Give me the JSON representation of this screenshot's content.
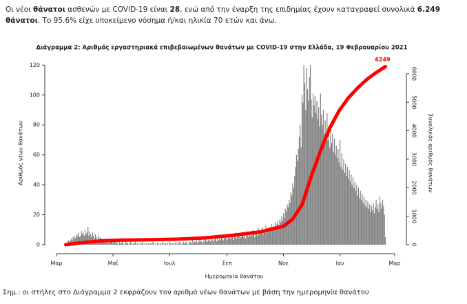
{
  "intro": [
    {
      "text": "Οι νέοι ",
      "bold": false
    },
    {
      "text": "θάνατοι",
      "bold": true
    },
    {
      "text": " ασθενών με COVID-19 είναι ",
      "bold": false
    },
    {
      "text": "28",
      "bold": true
    },
    {
      "text": ", ενώ από την έναρξη της επιδημίας έχουν καταγραφεί συνολικά ",
      "bold": false
    },
    {
      "text": "6.249 θάνατοι",
      "bold": true
    },
    {
      "text": ".  Το 95.6% είχε υποκείμενο νόσημα ή/και ηλικία 70 ετών και άνω.",
      "bold": false
    }
  ],
  "chart_data": {
    "type": "bar",
    "title": "Διάγραμμα 2: Αριθμός εργαστηριακά επιβεβαιωμένων θανάτων με COVID-19 στην Ελλάδα, 19 Φεβρουαρίου 2021",
    "xlabel": "Ημερομηνία θανάτου",
    "ylabel": "Αριθμός νέων θανάτων",
    "y2label": "Συνολικός αριθμός θανάτων",
    "xlim": [
      0,
      365
    ],
    "xticks": [
      {
        "value": 0,
        "label": "Μαρ"
      },
      {
        "value": 61,
        "label": "Μαΐ"
      },
      {
        "value": 122,
        "label": "Ιουλ"
      },
      {
        "value": 184,
        "label": "Σεπ"
      },
      {
        "value": 245,
        "label": "Νοε"
      },
      {
        "value": 306,
        "label": "Ιαν"
      },
      {
        "value": 365,
        "label": "Μαρ"
      }
    ],
    "ylim": [
      0,
      122
    ],
    "yticks": [
      0,
      20,
      40,
      60,
      80,
      100,
      120
    ],
    "y2lim": [
      0,
      6410
    ],
    "y2ticks": [
      0,
      1000,
      2000,
      3000,
      4000,
      5000,
      6000
    ],
    "series": [
      {
        "color": "#808080",
        "x": [
          10,
          11,
          12,
          13,
          14,
          15,
          16,
          17,
          18,
          19,
          20,
          21,
          22,
          23,
          24,
          25,
          26,
          27,
          28,
          29,
          30,
          31,
          32,
          33,
          34,
          35,
          36,
          37,
          38,
          39,
          40,
          41,
          42,
          43,
          44,
          45,
          46,
          47,
          48,
          49,
          50,
          51,
          52,
          53,
          54,
          55,
          56,
          57,
          58,
          59,
          60,
          61,
          62,
          63,
          64,
          65,
          66,
          67,
          68,
          69,
          70,
          71,
          72,
          73,
          74,
          75,
          76,
          77,
          78,
          79,
          80,
          81,
          82,
          83,
          84,
          85,
          86,
          87,
          88,
          89,
          90,
          91,
          92,
          93,
          94,
          95,
          96,
          97,
          98,
          99,
          100,
          101,
          102,
          103,
          104,
          105,
          106,
          107,
          108,
          109,
          110,
          111,
          112,
          113,
          114,
          115,
          116,
          117,
          118,
          119,
          120,
          121,
          122,
          123,
          124,
          125,
          126,
          127,
          128,
          129,
          130,
          131,
          132,
          133,
          134,
          135,
          136,
          137,
          138,
          139,
          140,
          141,
          142,
          143,
          144,
          145,
          146,
          147,
          148,
          149,
          150,
          151,
          152,
          153,
          154,
          155,
          156,
          157,
          158,
          159,
          160,
          161,
          162,
          163,
          164,
          165,
          166,
          167,
          168,
          169,
          170,
          171,
          172,
          173,
          174,
          175,
          176,
          177,
          178,
          179,
          180,
          181,
          182,
          183,
          184,
          185,
          186,
          187,
          188,
          189,
          190,
          191,
          192,
          193,
          194,
          195,
          196,
          197,
          198,
          199,
          200,
          201,
          202,
          203,
          204,
          205,
          206,
          207,
          208,
          209,
          210,
          211,
          212,
          213,
          214,
          215,
          216,
          217,
          218,
          219,
          220,
          221,
          222,
          223,
          224,
          225,
          226,
          227,
          228,
          229,
          230,
          231,
          232,
          233,
          234,
          235,
          236,
          237,
          238,
          239,
          240,
          241,
          242,
          243,
          244,
          245,
          246,
          247,
          248,
          249,
          250,
          251,
          252,
          253,
          254,
          255,
          256,
          257,
          258,
          259,
          260,
          261,
          262,
          263,
          264,
          265,
          266,
          267,
          268,
          269,
          270,
          271,
          272,
          273,
          274,
          275,
          276,
          277,
          278,
          279,
          280,
          281,
          282,
          283,
          284,
          285,
          286,
          287,
          288,
          289,
          290,
          291,
          292,
          293,
          294,
          295,
          296,
          297,
          298,
          299,
          300,
          301,
          302,
          303,
          304,
          305,
          306,
          307,
          308,
          309,
          310,
          311,
          312,
          313,
          314,
          315,
          316,
          317,
          318,
          319,
          320,
          321,
          322,
          323,
          324,
          325,
          326,
          327,
          328,
          329,
          330,
          331,
          332,
          333,
          334,
          335,
          336,
          337,
          338,
          339,
          340,
          341,
          342,
          343,
          344,
          345,
          346,
          347,
          348,
          349,
          350,
          351,
          352,
          353,
          354,
          355
        ],
        "values": [
          1,
          1,
          2,
          3,
          2,
          3,
          4,
          3,
          5,
          6,
          4,
          5,
          7,
          6,
          8,
          5,
          6,
          9,
          7,
          8,
          6,
          10,
          7,
          8,
          12,
          6,
          9,
          7,
          5,
          8,
          6,
          4,
          7,
          5,
          3,
          6,
          4,
          5,
          3,
          4,
          3,
          2,
          4,
          3,
          2,
          3,
          1,
          2,
          3,
          2,
          2,
          1,
          3,
          2,
          1,
          2,
          1,
          0,
          2,
          1,
          1,
          2,
          1,
          0,
          1,
          2,
          1,
          1,
          0,
          1,
          2,
          1,
          0,
          1,
          1,
          2,
          0,
          1,
          1,
          0,
          1,
          0,
          1,
          2,
          0,
          1,
          0,
          1,
          0,
          1,
          0,
          1,
          1,
          0,
          2,
          1,
          0,
          1,
          0,
          1,
          1,
          0,
          1,
          0,
          1,
          2,
          0,
          1,
          1,
          0,
          1,
          0,
          2,
          1,
          0,
          1,
          1,
          0,
          1,
          2,
          0,
          1,
          1,
          2,
          1,
          0,
          1,
          2,
          1,
          1,
          2,
          1,
          0,
          2,
          1,
          2,
          1,
          3,
          1,
          2,
          2,
          3,
          1,
          2,
          4,
          2,
          3,
          2,
          1,
          3,
          2,
          4,
          3,
          2,
          3,
          5,
          2,
          3,
          4,
          2,
          3,
          5,
          4,
          2,
          6,
          3,
          4,
          3,
          5,
          4,
          3,
          4,
          6,
          5,
          3,
          4,
          7,
          5,
          4,
          6,
          5,
          3,
          6,
          8,
          4,
          5,
          7,
          6,
          4,
          5,
          6,
          8,
          5,
          7,
          4,
          6,
          9,
          5,
          7,
          6,
          8,
          6,
          10,
          7,
          5,
          9,
          8,
          6,
          11,
          7,
          9,
          8,
          12,
          7,
          10,
          9,
          13,
          8,
          11,
          10,
          12,
          9,
          14,
          11,
          13,
          10,
          15,
          12,
          14,
          16,
          13,
          17,
          15,
          19,
          16,
          21,
          18,
          24,
          22,
          27,
          25,
          30,
          28,
          35,
          33,
          41,
          38,
          46,
          52,
          60,
          56,
          64,
          72,
          80,
          65,
          100,
          95,
          120,
          108,
          90,
          118,
          104,
          96,
          112,
          120,
          97,
          85,
          101,
          93,
          99,
          88,
          96,
          84,
          92,
          79,
          101,
          87,
          80,
          90,
          74,
          83,
          72,
          88,
          70,
          78,
          65,
          80,
          68,
          74,
          62,
          71,
          60,
          66,
          58,
          64,
          55,
          70,
          52,
          61,
          50,
          57,
          48,
          54,
          46,
          52,
          44,
          50,
          42,
          47,
          40,
          45,
          38,
          42,
          36,
          40,
          33,
          38,
          31,
          36,
          30,
          34,
          28,
          32,
          26,
          30,
          25,
          29,
          24,
          27,
          22,
          26,
          23,
          28,
          21,
          25,
          30,
          24,
          27,
          22,
          32,
          28,
          24,
          30,
          26,
          20,
          5
        ]
      },
      {
        "type": "line",
        "axis": "y2",
        "color": "#ff0000",
        "x": [
          10,
          30,
          50,
          70,
          100,
          130,
          160,
          190,
          220,
          245,
          255,
          265,
          275,
          285,
          295,
          305,
          315,
          325,
          335,
          345,
          355
        ],
        "values": [
          1,
          80,
          140,
          160,
          175,
          195,
          240,
          330,
          450,
          650,
          900,
          1400,
          2400,
          3300,
          4100,
          4700,
          5150,
          5500,
          5800,
          6040,
          6249
        ],
        "value_labels": [
          null,
          null,
          null,
          null,
          null,
          null,
          null,
          null,
          null,
          null,
          null,
          null,
          null,
          null,
          null,
          null,
          null,
          null,
          null,
          null,
          "6249"
        ]
      }
    ]
  },
  "note": "Σημ.: οι στήλες στο Διάγραμμα 2 εκφράζουν τον αριθμό νέων θανάτων με βάση την ημερομηνία θανάτου"
}
